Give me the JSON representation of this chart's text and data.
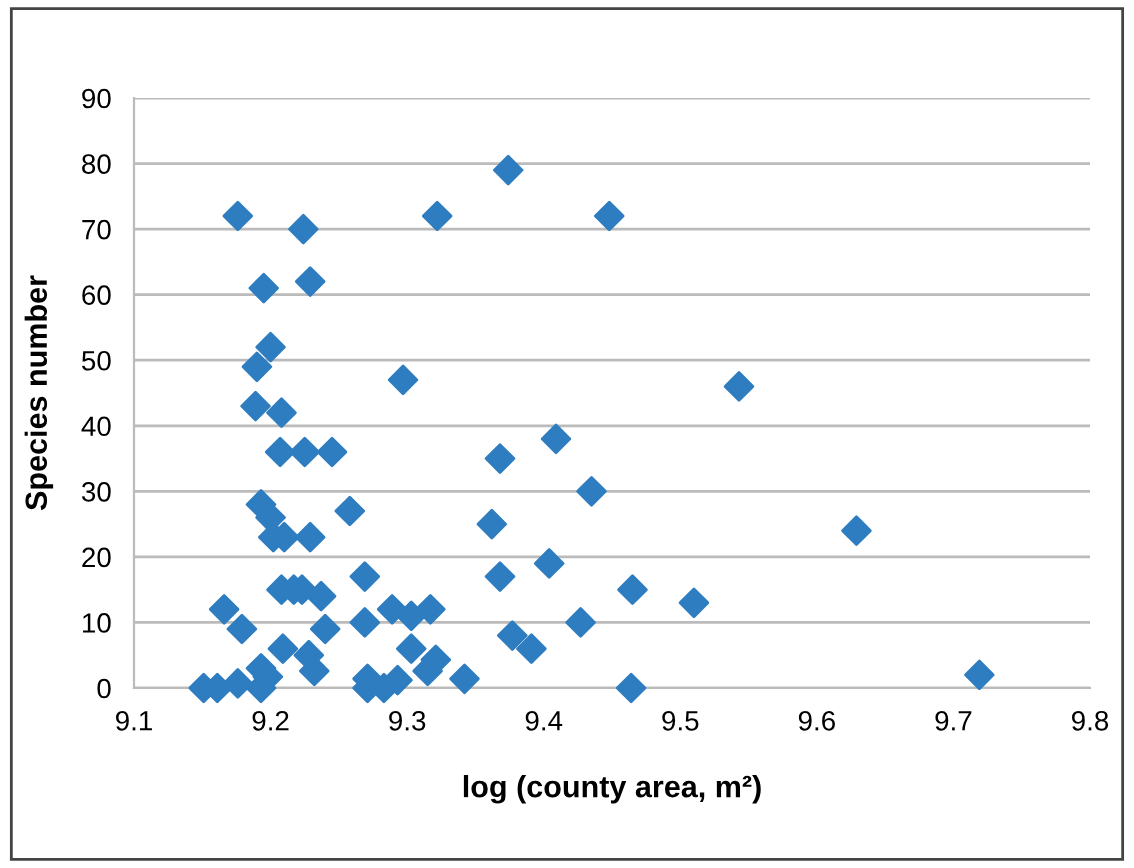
{
  "chart_data": {
    "type": "scatter",
    "xlabel": "log (county area, m²)",
    "ylabel": "Species number",
    "xlim": [
      9.1,
      9.8
    ],
    "xticks": [
      9.1,
      9.2,
      9.3,
      9.4,
      9.5,
      9.6,
      9.7,
      9.8
    ],
    "ylim": [
      0,
      90
    ],
    "yticks": [
      0,
      10,
      20,
      30,
      40,
      50,
      60,
      70,
      80,
      90
    ],
    "grid": "y",
    "marker": "diamond",
    "series": [
      {
        "color": "#2e7dc0",
        "x": [
          9.374,
          9.176,
          9.224,
          9.322,
          9.448,
          9.195,
          9.229,
          9.2,
          9.19,
          9.297,
          9.189,
          9.208,
          9.207,
          9.225,
          9.245,
          9.368,
          9.409,
          9.193,
          9.2,
          9.258,
          9.202,
          9.21,
          9.229,
          9.362,
          9.404,
          9.269,
          9.368,
          9.208,
          9.217,
          9.223,
          9.237,
          9.166,
          9.179,
          9.24,
          9.269,
          9.289,
          9.303,
          9.317,
          9.427,
          9.377,
          9.391,
          9.209,
          9.228,
          9.232,
          9.303,
          9.193,
          9.198,
          9.193,
          9.321,
          9.315,
          9.342,
          9.151,
          9.161,
          9.176,
          9.271,
          9.271,
          9.283,
          9.293,
          9.543,
          9.629,
          9.465,
          9.51,
          9.464,
          9.719,
          9.435
        ],
        "values": [
          79,
          72,
          70,
          72,
          72,
          61,
          62,
          52,
          49,
          47,
          43,
          42,
          36,
          36,
          36,
          35,
          38,
          28,
          26,
          27,
          23,
          23,
          23,
          25,
          19,
          17,
          17,
          15,
          15,
          15,
          14,
          12,
          9,
          9,
          10,
          12,
          11,
          12,
          10,
          8,
          6,
          6,
          5,
          2.6,
          6,
          3,
          1.7,
          0,
          4.3,
          2.6,
          1.4,
          0,
          0,
          0.7,
          1.4,
          0,
          0,
          1.2,
          46,
          24,
          15,
          13,
          0,
          2,
          30
        ]
      }
    ]
  }
}
